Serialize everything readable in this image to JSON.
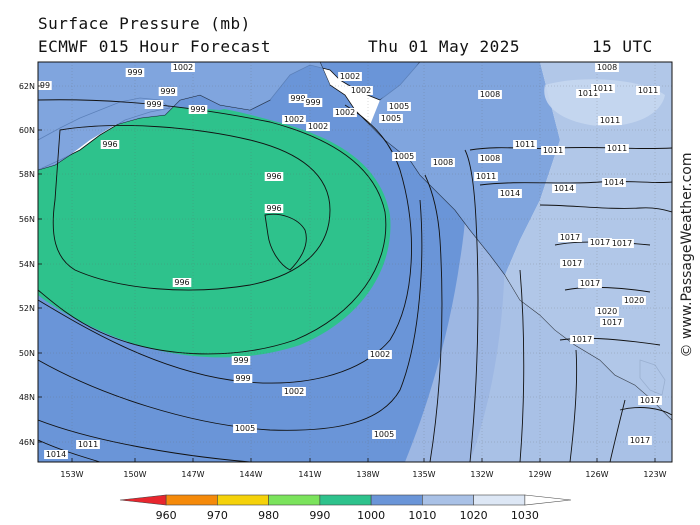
{
  "header": {
    "line1": "Surface Pressure (mb)",
    "line2_left": "ECMWF 015 Hour Forecast",
    "line2_date": "Thu 01 May 2025",
    "line2_time": "15 UTC"
  },
  "credit": "© www.PassageWeather.com",
  "axes": {
    "lat_labels": [
      "62N",
      "60N",
      "58N",
      "56N",
      "54N",
      "52N",
      "50N",
      "48N",
      "46N"
    ],
    "lon_labels": [
      "153W",
      "150W",
      "147W",
      "144W",
      "141W",
      "138W",
      "135W",
      "132W",
      "129W",
      "126W",
      "123W"
    ]
  },
  "legend": {
    "ticks": [
      "960",
      "970",
      "980",
      "990",
      "1000",
      "1010",
      "1020",
      "1030"
    ],
    "colors": [
      "#e8262e",
      "#f58a0a",
      "#f5d20a",
      "#7be35c",
      "#2ec28c",
      "#6a95d8",
      "#a9c1e6",
      "#dde7f5",
      "#ffffff"
    ]
  },
  "isobar_labels": [
    {
      "v": "1002"
    },
    {
      "v": "999"
    },
    {
      "v": "99"
    },
    {
      "v": "999"
    },
    {
      "v": "999"
    },
    {
      "v": "999"
    },
    {
      "v": "996"
    },
    {
      "v": "999"
    },
    {
      "v": "999"
    },
    {
      "v": "1002"
    },
    {
      "v": "1002"
    },
    {
      "v": "1002"
    },
    {
      "v": "1002"
    },
    {
      "v": "1002"
    },
    {
      "v": "1005"
    },
    {
      "v": "1005"
    },
    {
      "v": "1008"
    },
    {
      "v": "1005"
    },
    {
      "v": "1008"
    },
    {
      "v": "1008"
    },
    {
      "v": "1011"
    },
    {
      "v": "1011"
    },
    {
      "v": "1011"
    },
    {
      "v": "1014"
    },
    {
      "v": "996"
    },
    {
      "v": "996"
    },
    {
      "v": "996"
    },
    {
      "v": "999"
    },
    {
      "v": "999"
    },
    {
      "v": "1002"
    },
    {
      "v": "1002"
    },
    {
      "v": "1005"
    },
    {
      "v": "1005"
    },
    {
      "v": "1011"
    },
    {
      "v": "1014"
    },
    {
      "v": "1008"
    },
    {
      "v": "1011"
    },
    {
      "v": "1011"
    },
    {
      "v": "1011"
    },
    {
      "v": "1011"
    },
    {
      "v": "1011"
    },
    {
      "v": "1014"
    },
    {
      "v": "1014"
    },
    {
      "v": "1017"
    },
    {
      "v": "1017"
    },
    {
      "v": "1017"
    },
    {
      "v": "1017"
    },
    {
      "v": "1017"
    },
    {
      "v": "1020"
    },
    {
      "v": "1020"
    },
    {
      "v": "1017"
    },
    {
      "v": "1017"
    },
    {
      "v": "1017"
    },
    {
      "v": "1017"
    }
  ]
}
